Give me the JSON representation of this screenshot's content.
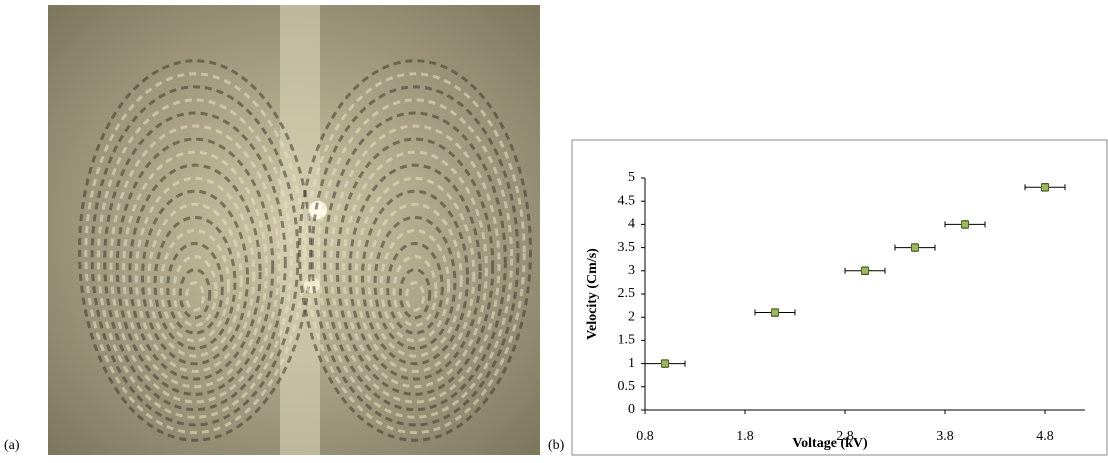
{
  "labels": {
    "a": "(a)",
    "b": "(b)"
  },
  "chart_data": {
    "type": "scatter",
    "xlabel": "Voltage (kV)",
    "ylabel": "Velocity (Cm/s)",
    "x": [
      1,
      2.1,
      3,
      3.5,
      4,
      4.8
    ],
    "series": [
      {
        "color": "#9bbb59",
        "values": [
          1,
          2.1,
          3,
          3.5,
          4,
          4.8
        ],
        "xerr": [
          0.2,
          0.2,
          0.2,
          0.2,
          0.2,
          0.2
        ],
        "yerr": [
          0.08,
          0.08,
          0.08,
          0.08,
          0.08,
          0.08
        ]
      }
    ],
    "xlim": [
      0.8,
      5.2
    ],
    "xticks": [
      0.8,
      1.8,
      2.8,
      3.8,
      4.8
    ],
    "ylim": [
      0,
      5
    ],
    "yticks": [
      0,
      0.5,
      1,
      1.5,
      2,
      2.5,
      3,
      3.5,
      4,
      4.5,
      5
    ]
  }
}
